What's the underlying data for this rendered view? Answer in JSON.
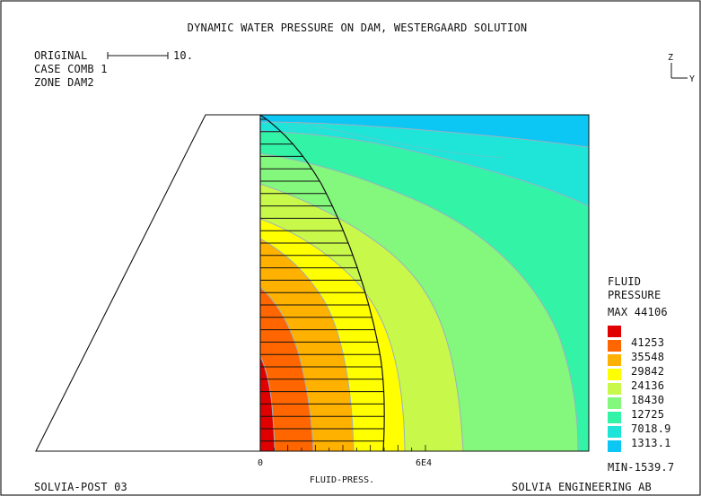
{
  "title": "DYNAMIC WATER PRESSURE ON DAM, WESTERGAARD SOLUTION",
  "header": {
    "original_label": "ORIGINAL",
    "original_scale_value": "10.",
    "case_label": "CASE COMB 1",
    "zone_label": "ZONE DAM2"
  },
  "axes": {
    "z_label": "Z",
    "y_label": "Y"
  },
  "legend": {
    "title_line1": "FLUID",
    "title_line2": "PRESSURE",
    "max_label": "MAX 44106",
    "min_label": "MIN-1539.7",
    "levels": [
      {
        "label": "41253",
        "color": "#e10000"
      },
      {
        "label": "35548",
        "color": "#ff6600"
      },
      {
        "label": "29842",
        "color": "#ffb100"
      },
      {
        "label": "24136",
        "color": "#ffff00"
      },
      {
        "label": "18430",
        "color": "#c8f84a"
      },
      {
        "label": "12725",
        "color": "#84f77d"
      },
      {
        "label": "7018.9",
        "color": "#33f3a7"
      },
      {
        "label": "1313.1",
        "color": "#1fe4d8"
      },
      {
        "label": "",
        "color": "#0cc6f4"
      }
    ]
  },
  "pressure_scale": {
    "zero_label": "0",
    "max_label": "6E4",
    "axis_label": "FLUID-PRESS."
  },
  "footer": {
    "left": "SOLVIA-POST 03",
    "right": "SOLVIA ENGINEERING AB"
  }
}
